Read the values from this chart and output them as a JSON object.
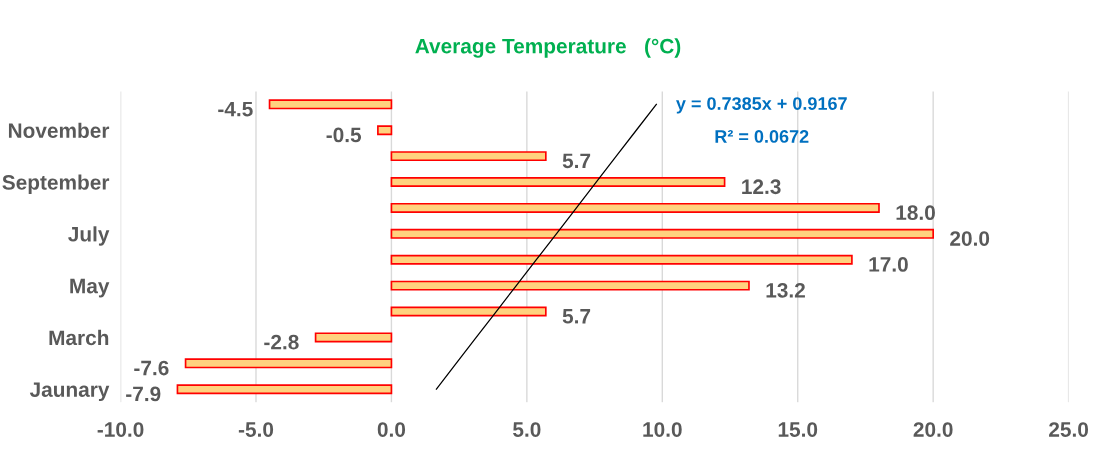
{
  "chart_data": {
    "type": "bar",
    "orientation": "horizontal",
    "title": "Average Temperature   (°C)",
    "categories": [
      null,
      "November",
      null,
      "September",
      null,
      "July",
      null,
      "May",
      null,
      "March",
      null,
      "Jaunary"
    ],
    "series": [
      {
        "color": "#ffd27f",
        "values": [
          -4.5,
          -0.5,
          5.7,
          12.3,
          18.0,
          20.0,
          17.0,
          13.2,
          5.7,
          -2.8,
          -7.6,
          -7.9
        ],
        "value_labels": [
          "-4.5",
          "-0.5",
          "5.7",
          "12.3",
          "18.0",
          "20.0",
          "17.0",
          "13.2",
          "5.7",
          "-2.8",
          "-7.6",
          "-7.9"
        ]
      },
      {
        "type": "line",
        "color": "#000000",
        "values": [
          9.78,
          9.04,
          8.3,
          7.56,
          6.83,
          6.09,
          5.35,
          4.61,
          3.87,
          3.13,
          2.39,
          1.66
        ]
      }
    ],
    "annotations": [
      "y = 0.7385x + 0.9167",
      "R² = 0.0672"
    ],
    "xlim": [
      -10,
      25
    ],
    "xticks": [
      {
        "value": -10,
        "label": "-10.0"
      },
      {
        "value": -5,
        "label": "-5.0"
      },
      {
        "value": 0,
        "label": "0.0"
      },
      {
        "value": 5,
        "label": "5.0"
      },
      {
        "value": 10,
        "label": "10.0"
      },
      {
        "value": 15,
        "label": "15.0"
      },
      {
        "value": 20,
        "label": "20.0"
      },
      {
        "value": 25,
        "label": "25.0"
      }
    ],
    "grid": "x"
  }
}
